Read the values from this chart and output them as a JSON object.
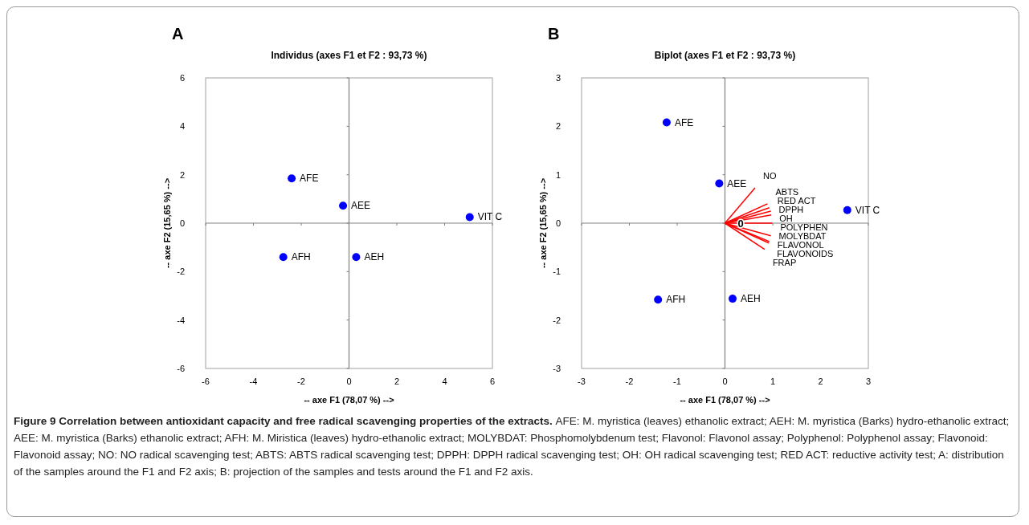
{
  "chart_data": [
    {
      "type": "scatter",
      "title": "Individus (axes F1 et F2 : 93,73 %)",
      "xlabel": "-- axe F1 (78,07 %) -->",
      "ylabel": "-- axe F2 (15,65 %) -->",
      "xlim": [
        -6,
        6
      ],
      "ylim": [
        -6,
        6
      ],
      "xticks": [
        -6,
        -4,
        -2,
        0,
        2,
        4,
        6
      ],
      "yticks": [
        -6,
        -4,
        -2,
        0,
        2,
        4,
        6
      ],
      "marker": "circle",
      "annotations": [
        "A",
        "Figure 9 Correlation between antioxidant capacity and free radical scavenging properties of the extracts.",
        "AFE: M. myristica (leaves) ethanolic extract; AEH: M. myristica (Barks) hydro-ethanolic extract; AEE: M. myristica (Barks) ethanolic extract; AFH: M. Miristica (leaves) hydro-ethanolic extract; MOLYBDAT: Phosphomolybdenum test; Flavonol: Flavonol assay; Polyphenol: Polyphenol assay; Flavonoid: Flavonoid assay; NO: NO radical scavenging test; ABTS: ABTS radical scavenging test; DPPH: DPPH radical scavenging test; OH: OH radical scavenging test; RED ACT: reductive activity test; A: distribution of the samples around the F1 and F2 axis; B: projection of the samples and tests around the F1 and F2 axis."
      ],
      "series": [
        {
          "name": "AFE",
          "color": "#0000ff",
          "x": [
            -2.4
          ],
          "values": [
            1.85
          ]
        },
        {
          "name": "AEE",
          "color": "#0000ff",
          "x": [
            -0.25
          ],
          "values": [
            0.72
          ]
        },
        {
          "name": "VIT C",
          "color": "#0000ff",
          "x": [
            5.05
          ],
          "values": [
            0.25
          ]
        },
        {
          "name": "AFH",
          "color": "#0000ff",
          "x": [
            -2.75
          ],
          "values": [
            -1.4
          ]
        },
        {
          "name": "AEH",
          "color": "#0000ff",
          "x": [
            0.3
          ],
          "values": [
            -1.4
          ]
        }
      ]
    },
    {
      "type": "scatter",
      "title": "Biplot (axes F1 et F2 : 93,73 %)",
      "xlabel": "-- axe F1 (78,07 %) -->",
      "ylabel": "-- axe F2 (15,65 %) -->",
      "xlim": [
        -3,
        3
      ],
      "ylim": [
        -3,
        3
      ],
      "xticks": [
        -3,
        -2,
        -1,
        0,
        1,
        2,
        3
      ],
      "yticks": [
        -3,
        -2,
        -1,
        0,
        1,
        2,
        3
      ],
      "annotations": [
        "B",
        {
          "text": "0",
          "x": 0.33,
          "y": 0
        }
      ],
      "series": [
        {
          "name": "AFE",
          "color": "#0000ff",
          "marker": "circle",
          "x": [
            -1.22
          ],
          "values": [
            2.08
          ]
        },
        {
          "name": "AEE",
          "color": "#0000ff",
          "marker": "circle",
          "x": [
            -0.12
          ],
          "values": [
            0.82
          ]
        },
        {
          "name": "VIT C",
          "color": "#0000ff",
          "marker": "circle",
          "x": [
            2.56
          ],
          "values": [
            0.27
          ]
        },
        {
          "name": "AFH",
          "color": "#0000ff",
          "marker": "circle",
          "x": [
            -1.4
          ],
          "values": [
            -1.58
          ]
        },
        {
          "name": "AEH",
          "color": "#0000ff",
          "marker": "circle",
          "x": [
            0.16
          ],
          "values": [
            -1.56
          ]
        },
        {
          "name": "NO",
          "type": "line",
          "color": "#ff0000",
          "x": [
            0,
            0.63
          ],
          "values": [
            0,
            0.73
          ]
        },
        {
          "name": "ABTS",
          "type": "line",
          "color": "#ff0000",
          "x": [
            0,
            0.89
          ],
          "values": [
            0,
            0.4
          ]
        },
        {
          "name": "RED ACT",
          "type": "line",
          "color": "#ff0000",
          "x": [
            0,
            0.93
          ],
          "values": [
            0,
            0.32
          ]
        },
        {
          "name": "DPPH",
          "type": "line",
          "color": "#ff0000",
          "x": [
            0,
            0.96
          ],
          "values": [
            0,
            0.25
          ]
        },
        {
          "name": "OH",
          "type": "line",
          "color": "#ff0000",
          "x": [
            0,
            0.97
          ],
          "values": [
            0,
            0.17
          ]
        },
        {
          "name": "POLYPHEN",
          "type": "line",
          "color": "#ff0000",
          "x": [
            0,
            0.99
          ],
          "values": [
            0,
            0
          ]
        },
        {
          "name": "MOLYBDAT",
          "type": "line",
          "color": "#ff0000",
          "x": [
            0,
            0.96
          ],
          "values": [
            0,
            -0.26
          ]
        },
        {
          "name": "FLAVONOL",
          "type": "line",
          "color": "#ff0000",
          "x": [
            0,
            0.93
          ],
          "values": [
            0,
            -0.38
          ]
        },
        {
          "name": "FLAVONOIDS",
          "type": "line",
          "color": "#ff0000",
          "x": [
            0,
            0.92
          ],
          "values": [
            0,
            -0.41
          ]
        },
        {
          "name": "FRAP",
          "type": "line",
          "color": "#ff0000",
          "x": [
            0,
            0.83
          ],
          "values": [
            0,
            -0.54
          ]
        }
      ]
    }
  ]
}
